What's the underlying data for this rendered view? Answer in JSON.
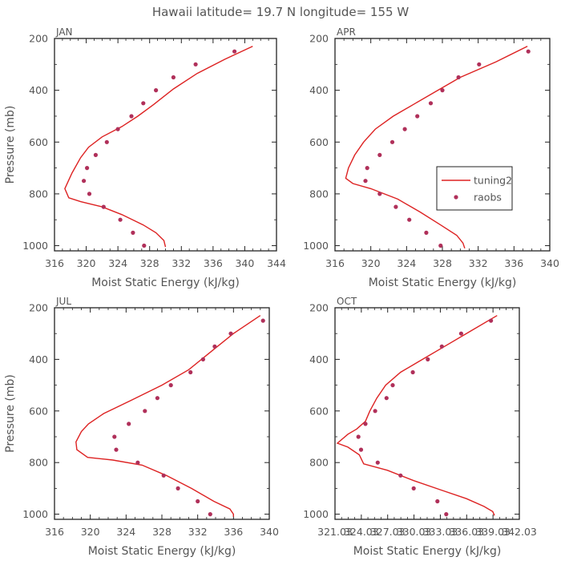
{
  "page": {
    "title": "Hawaii  latitude= 19.7 N longitude= 155 W"
  },
  "colors": {
    "line": "#dd2222",
    "marker": "#b0305a",
    "axis": "#222222",
    "text": "#555555"
  },
  "legend": {
    "entries": [
      {
        "label": "tuning2",
        "type": "line"
      },
      {
        "label": "raobs",
        "type": "marker"
      }
    ]
  },
  "chart_data": [
    {
      "type": "line",
      "panel": "JAN",
      "xlabel": "Moist Static Energy (kJ/kg)",
      "ylabel": "Pressure (mb)",
      "xlim": [
        316,
        344
      ],
      "ylim": [
        1020,
        200
      ],
      "xticks": [
        "316",
        "320",
        "324",
        "328",
        "332",
        "336",
        "340",
        "344"
      ],
      "yticks": [
        "200",
        "400",
        "600",
        "800",
        "1000"
      ],
      "series": [
        {
          "name": "tuning2",
          "style": "line",
          "points": [
            [
              341.0,
              230
            ],
            [
              337.5,
              280
            ],
            [
              334.0,
              335
            ],
            [
              331.0,
              395
            ],
            [
              328.5,
              455
            ],
            [
              326.5,
              500
            ],
            [
              324.5,
              540
            ],
            [
              322.0,
              580
            ],
            [
              320.3,
              620
            ],
            [
              319.3,
              660
            ],
            [
              318.2,
              720
            ],
            [
              317.3,
              780
            ],
            [
              317.8,
              815
            ],
            [
              319.3,
              830
            ],
            [
              322.0,
              850
            ],
            [
              324.5,
              880
            ],
            [
              327.2,
              920
            ],
            [
              328.8,
              950
            ],
            [
              329.8,
              980
            ],
            [
              330.0,
              1005
            ]
          ]
        },
        {
          "name": "raobs",
          "style": "marker",
          "points": [
            [
              338.7,
              250
            ],
            [
              333.8,
              300
            ],
            [
              331.0,
              350
            ],
            [
              328.8,
              400
            ],
            [
              327.2,
              450
            ],
            [
              325.7,
              500
            ],
            [
              324.0,
              550
            ],
            [
              322.6,
              600
            ],
            [
              321.2,
              650
            ],
            [
              320.1,
              700
            ],
            [
              319.7,
              750
            ],
            [
              320.4,
              800
            ],
            [
              322.2,
              850
            ],
            [
              324.3,
              900
            ],
            [
              325.9,
              950
            ],
            [
              327.3,
              1000
            ]
          ]
        }
      ]
    },
    {
      "type": "line",
      "panel": "APR",
      "xlabel": "Moist Static Energy (kJ/kg)",
      "ylabel": "",
      "xlim": [
        316,
        340
      ],
      "ylim": [
        1020,
        200
      ],
      "xticks": [
        "316",
        "320",
        "324",
        "328",
        "332",
        "336",
        "340"
      ],
      "yticks": [
        "200",
        "400",
        "600",
        "800",
        "1000"
      ],
      "series": [
        {
          "name": "tuning2",
          "style": "line",
          "points": [
            [
              337.5,
              230
            ],
            [
              334.0,
              290
            ],
            [
              330.0,
              350
            ],
            [
              327.5,
              400
            ],
            [
              325.0,
              450
            ],
            [
              322.5,
              500
            ],
            [
              320.5,
              550
            ],
            [
              319.2,
              600
            ],
            [
              318.2,
              650
            ],
            [
              317.5,
              700
            ],
            [
              317.2,
              740
            ],
            [
              318.0,
              760
            ],
            [
              320.0,
              780
            ],
            [
              323.0,
              820
            ],
            [
              325.5,
              870
            ],
            [
              327.8,
              920
            ],
            [
              329.6,
              960
            ],
            [
              330.3,
              990
            ],
            [
              330.5,
              1010
            ]
          ]
        },
        {
          "name": "raobs",
          "style": "marker",
          "points": [
            [
              337.6,
              250
            ],
            [
              332.1,
              300
            ],
            [
              329.8,
              350
            ],
            [
              328.0,
              400
            ],
            [
              326.7,
              450
            ],
            [
              325.2,
              500
            ],
            [
              323.8,
              550
            ],
            [
              322.4,
              600
            ],
            [
              321.0,
              650
            ],
            [
              319.6,
              700
            ],
            [
              319.4,
              750
            ],
            [
              321.0,
              800
            ],
            [
              322.8,
              850
            ],
            [
              324.3,
              900
            ],
            [
              326.2,
              950
            ],
            [
              327.8,
              1000
            ]
          ]
        }
      ]
    },
    {
      "type": "line",
      "panel": "JUL",
      "xlabel": "Moist Static Energy (kJ/kg)",
      "ylabel": "Pressure (mb)",
      "xlim": [
        316,
        340
      ],
      "ylim": [
        1020,
        200
      ],
      "xticks": [
        "316",
        "320",
        "324",
        "328",
        "332",
        "336",
        "340"
      ],
      "yticks": [
        "200",
        "400",
        "600",
        "800",
        "1000"
      ],
      "series": [
        {
          "name": "tuning2",
          "style": "line",
          "points": [
            [
              339.0,
              230
            ],
            [
              336.0,
              300
            ],
            [
              333.5,
              370
            ],
            [
              331.0,
              440
            ],
            [
              328.0,
              500
            ],
            [
              324.5,
              560
            ],
            [
              321.5,
              610
            ],
            [
              319.8,
              650
            ],
            [
              319.0,
              680
            ],
            [
              318.4,
              720
            ],
            [
              318.5,
              750
            ],
            [
              319.7,
              780
            ],
            [
              322.5,
              790
            ],
            [
              325.8,
              810
            ],
            [
              328.5,
              850
            ],
            [
              331.3,
              900
            ],
            [
              333.8,
              950
            ],
            [
              335.6,
              980
            ],
            [
              336.0,
              1000
            ],
            [
              336.0,
              1010
            ]
          ]
        },
        {
          "name": "raobs",
          "style": "marker",
          "points": [
            [
              339.3,
              250
            ],
            [
              335.7,
              300
            ],
            [
              333.9,
              350
            ],
            [
              332.6,
              400
            ],
            [
              331.2,
              450
            ],
            [
              329.0,
              500
            ],
            [
              327.5,
              550
            ],
            [
              326.1,
              600
            ],
            [
              324.3,
              650
            ],
            [
              322.7,
              700
            ],
            [
              322.9,
              750
            ],
            [
              325.3,
              800
            ],
            [
              328.2,
              850
            ],
            [
              329.8,
              900
            ],
            [
              332.0,
              950
            ],
            [
              333.4,
              1000
            ]
          ]
        }
      ]
    },
    {
      "type": "line",
      "panel": "OCT",
      "xlabel": "Moist Static Energy (kJ/kg)",
      "ylabel": "",
      "xlim": [
        321.03,
        342.03
      ],
      "ylim": [
        1020,
        200
      ],
      "xticks": [
        "321.03",
        "324.03",
        "327.03",
        "330.03",
        "333.03",
        "336.03",
        "339.03",
        "342.03"
      ],
      "yticks": [
        "200",
        "400",
        "600",
        "800",
        "1000"
      ],
      "series": [
        {
          "name": "tuning2",
          "style": "line",
          "points": [
            [
              339.5,
              230
            ],
            [
              336.5,
              290
            ],
            [
              333.5,
              350
            ],
            [
              331.0,
              400
            ],
            [
              328.5,
              450
            ],
            [
              326.8,
              500
            ],
            [
              325.8,
              550
            ],
            [
              325.0,
              600
            ],
            [
              324.5,
              640
            ],
            [
              323.5,
              670
            ],
            [
              322.5,
              690
            ],
            [
              321.3,
              725
            ],
            [
              322.5,
              740
            ],
            [
              323.8,
              770
            ],
            [
              324.3,
              805
            ],
            [
              327.0,
              830
            ],
            [
              330.0,
              870
            ],
            [
              333.0,
              905
            ],
            [
              336.0,
              940
            ],
            [
              338.0,
              970
            ],
            [
              339.0,
              990
            ],
            [
              339.2,
              1005
            ]
          ]
        },
        {
          "name": "raobs",
          "style": "marker",
          "points": [
            [
              338.8,
              250
            ],
            [
              335.4,
              300
            ],
            [
              333.2,
              350
            ],
            [
              331.6,
              400
            ],
            [
              329.9,
              450
            ],
            [
              327.6,
              500
            ],
            [
              326.9,
              550
            ],
            [
              325.6,
              600
            ],
            [
              324.5,
              650
            ],
            [
              323.7,
              700
            ],
            [
              324.0,
              750
            ],
            [
              325.9,
              800
            ],
            [
              328.5,
              850
            ],
            [
              330.0,
              900
            ],
            [
              332.7,
              950
            ],
            [
              333.7,
              1000
            ]
          ]
        }
      ]
    }
  ]
}
